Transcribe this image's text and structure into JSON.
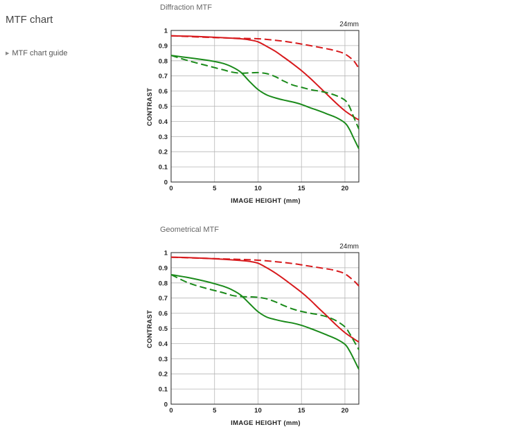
{
  "page": {
    "title": "MTF chart",
    "guide_link": "MTF chart guide"
  },
  "colors": {
    "sagittal_series": "#d7191c",
    "green_series": "#1a8a1a",
    "grid": "#b5b5b5",
    "frame": "#222222"
  },
  "chart_data": [
    {
      "type": "line",
      "title": "Diffraction MTF",
      "annotation": "24mm",
      "xlabel": "IMAGE HEIGHT (mm)",
      "ylabel": "CONTRAST",
      "xlim": [
        0,
        21.6
      ],
      "ylim": [
        0,
        1
      ],
      "xticks": [
        0,
        5,
        10,
        15,
        20
      ],
      "xtick_labels": [
        "0",
        "5",
        "10",
        "15",
        "20"
      ],
      "yticks": [
        0,
        0.1,
        0.2,
        0.3,
        0.4,
        0.5,
        0.6,
        0.7,
        0.8,
        0.9,
        1
      ],
      "ytick_labels": [
        "0",
        "0.1",
        "0.2",
        "0.3",
        "0.4",
        "0.5",
        "0.6",
        "0.7",
        "0.8",
        "0.9",
        "1"
      ],
      "grid": true,
      "series": [
        {
          "color": "#d7191c",
          "dash": "solid",
          "x": [
            0,
            2,
            4,
            6,
            8,
            9,
            10,
            11,
            12,
            13,
            14,
            15,
            16,
            17,
            18,
            19,
            20,
            21,
            21.6
          ],
          "y": [
            0.965,
            0.962,
            0.958,
            0.952,
            0.945,
            0.938,
            0.925,
            0.895,
            0.862,
            0.822,
            0.78,
            0.735,
            0.685,
            0.63,
            0.575,
            0.52,
            0.47,
            0.43,
            0.41
          ]
        },
        {
          "color": "#d7191c",
          "dash": "dashed",
          "x": [
            0,
            4,
            8,
            10,
            12,
            14,
            16,
            18,
            19,
            20,
            21,
            21.6
          ],
          "y": [
            0.965,
            0.955,
            0.948,
            0.945,
            0.935,
            0.92,
            0.9,
            0.878,
            0.865,
            0.845,
            0.8,
            0.75
          ]
        },
        {
          "color": "#1a8a1a",
          "dash": "solid",
          "x": [
            0,
            2,
            4,
            5,
            6,
            7,
            8,
            9,
            10,
            11,
            12,
            13,
            14,
            15,
            16,
            17,
            18,
            19,
            20,
            20.5,
            21,
            21.6
          ],
          "y": [
            0.835,
            0.82,
            0.805,
            0.795,
            0.782,
            0.76,
            0.725,
            0.665,
            0.61,
            0.575,
            0.555,
            0.54,
            0.528,
            0.512,
            0.49,
            0.47,
            0.448,
            0.425,
            0.39,
            0.35,
            0.29,
            0.22
          ]
        },
        {
          "color": "#1a8a1a",
          "dash": "dashed",
          "x": [
            0,
            2,
            4,
            6,
            7,
            8,
            9,
            10,
            11,
            12,
            13,
            14,
            15,
            16,
            17,
            18,
            19,
            20,
            20.5,
            21,
            21.6
          ],
          "y": [
            0.835,
            0.8,
            0.77,
            0.74,
            0.725,
            0.718,
            0.72,
            0.722,
            0.715,
            0.695,
            0.665,
            0.64,
            0.625,
            0.61,
            0.6,
            0.588,
            0.57,
            0.54,
            0.5,
            0.43,
            0.35
          ]
        }
      ]
    },
    {
      "type": "line",
      "title": "Geometrical MTF",
      "annotation": "24mm",
      "xlabel": "IMAGE HEIGHT (mm)",
      "ylabel": "CONTRAST",
      "xlim": [
        0,
        21.6
      ],
      "ylim": [
        0,
        1
      ],
      "xticks": [
        0,
        5,
        10,
        15,
        20
      ],
      "xtick_labels": [
        "0",
        "5",
        "10",
        "15",
        "20"
      ],
      "yticks": [
        0,
        0.1,
        0.2,
        0.3,
        0.4,
        0.5,
        0.6,
        0.7,
        0.8,
        0.9,
        1
      ],
      "ytick_labels": [
        "0",
        "0.1",
        "0.2",
        "0.3",
        "0.4",
        "0.5",
        "0.6",
        "0.7",
        "0.8",
        "0.9",
        "1"
      ],
      "grid": true,
      "series": [
        {
          "color": "#d7191c",
          "dash": "solid",
          "x": [
            0,
            2,
            4,
            6,
            8,
            9,
            10,
            11,
            12,
            13,
            14,
            15,
            16,
            17,
            18,
            19,
            20,
            21,
            21.6
          ],
          "y": [
            0.97,
            0.967,
            0.962,
            0.956,
            0.948,
            0.942,
            0.93,
            0.9,
            0.865,
            0.825,
            0.782,
            0.738,
            0.688,
            0.632,
            0.578,
            0.522,
            0.472,
            0.432,
            0.41
          ]
        },
        {
          "color": "#d7191c",
          "dash": "dashed",
          "x": [
            0,
            4,
            8,
            10,
            12,
            14,
            16,
            18,
            19,
            20,
            21,
            21.6
          ],
          "y": [
            0.97,
            0.962,
            0.955,
            0.95,
            0.94,
            0.928,
            0.91,
            0.892,
            0.88,
            0.86,
            0.815,
            0.78
          ]
        },
        {
          "color": "#1a8a1a",
          "dash": "solid",
          "x": [
            0,
            2,
            4,
            5,
            6,
            7,
            8,
            9,
            10,
            11,
            12,
            13,
            14,
            15,
            16,
            17,
            18,
            19,
            20,
            20.5,
            21,
            21.6
          ],
          "y": [
            0.855,
            0.835,
            0.81,
            0.795,
            0.778,
            0.755,
            0.72,
            0.665,
            0.61,
            0.575,
            0.558,
            0.545,
            0.535,
            0.52,
            0.5,
            0.478,
            0.455,
            0.43,
            0.395,
            0.355,
            0.3,
            0.23
          ]
        },
        {
          "color": "#1a8a1a",
          "dash": "dashed",
          "x": [
            0,
            2,
            4,
            6,
            7,
            8,
            9,
            10,
            11,
            12,
            13,
            14,
            15,
            16,
            17,
            18,
            19,
            20,
            20.5,
            21,
            21.6
          ],
          "y": [
            0.855,
            0.8,
            0.765,
            0.735,
            0.718,
            0.71,
            0.708,
            0.705,
            0.695,
            0.675,
            0.65,
            0.628,
            0.612,
            0.6,
            0.59,
            0.575,
            0.55,
            0.51,
            0.47,
            0.42,
            0.36
          ]
        }
      ]
    }
  ]
}
